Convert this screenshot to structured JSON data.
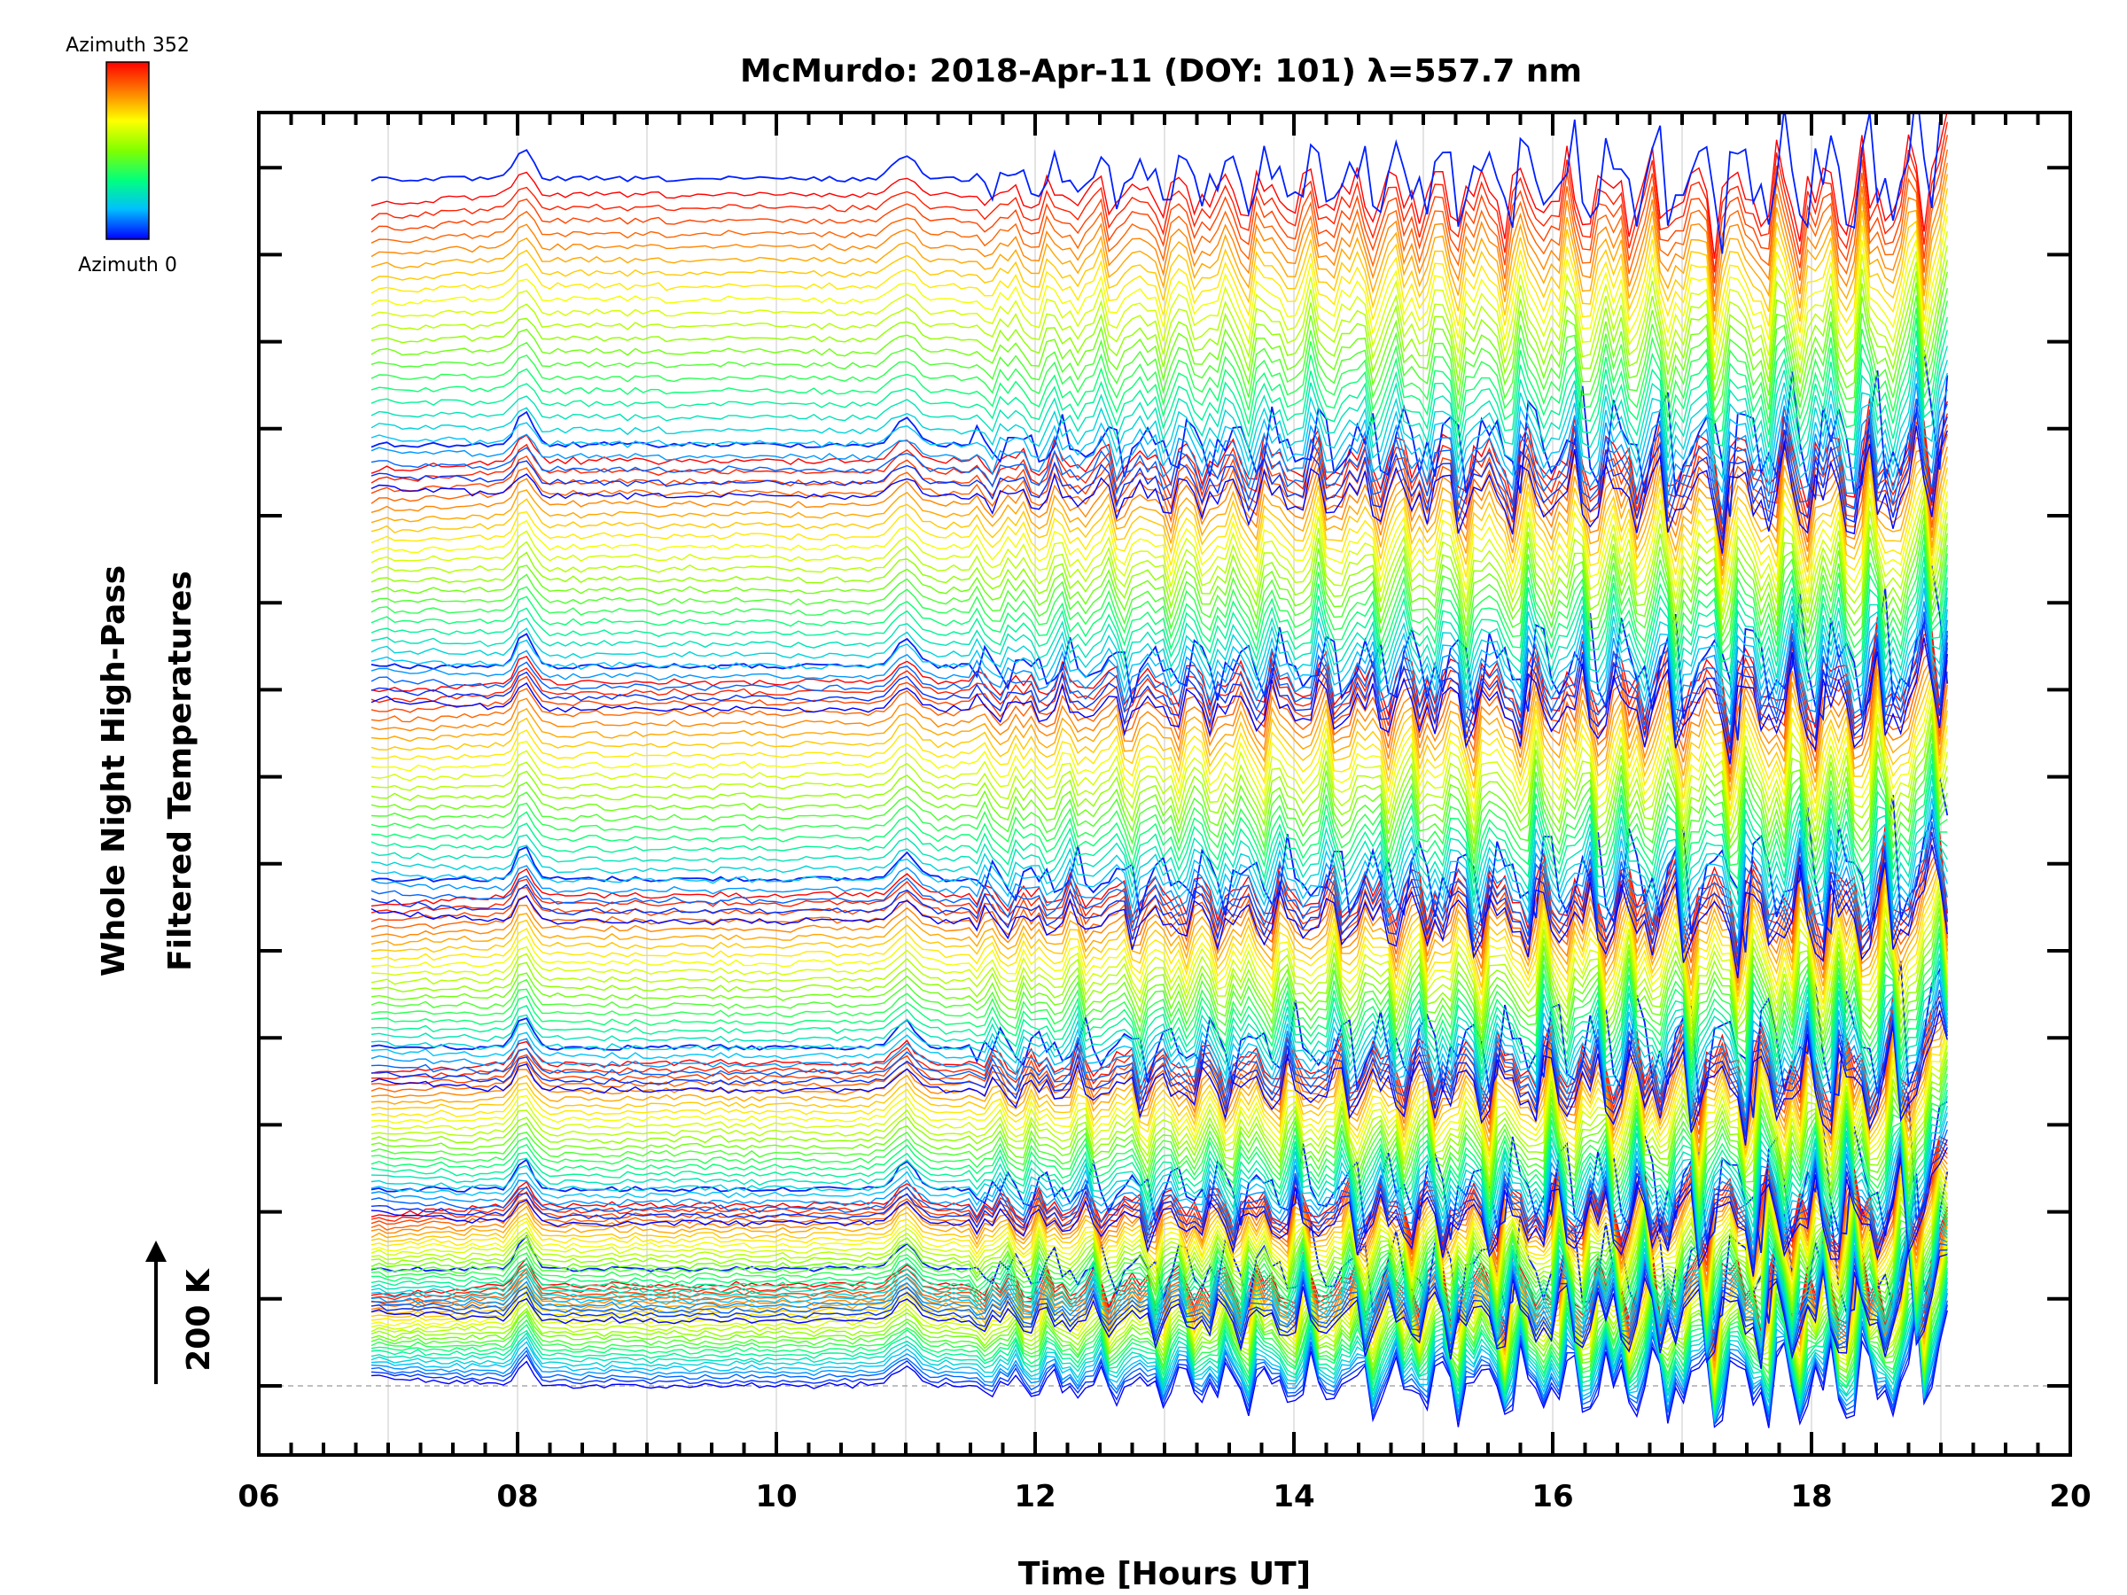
{
  "chart_data": {
    "type": "line",
    "title": "McMurdo: 2018-Apr-11 (DOY: 101) λ=557.7 nm",
    "xlabel": "Time [Hours UT]",
    "ylabel_lines": [
      "Whole Night High-Pass",
      "Filtered Temperatures"
    ],
    "scale_label": "200 K",
    "colorbar": {
      "top_label": "Azimuth 352",
      "bottom_label": "Azimuth 0",
      "colors": [
        "#ff0000",
        "#ff8000",
        "#ffff00",
        "#80ff00",
        "#00ff80",
        "#00c0ff",
        "#0000ff"
      ]
    },
    "xlim": [
      6,
      20
    ],
    "x_ticks": [
      "06",
      "08",
      "10",
      "12",
      "14",
      "16",
      "18",
      "20"
    ],
    "x_tick_values": [
      6,
      8,
      10,
      12,
      14,
      16,
      18,
      20
    ],
    "x_start": 6.87,
    "x_end": 19.05,
    "groups": 7,
    "azimuth_steps": 24,
    "grid": true,
    "legend": "top-left colorbar"
  }
}
